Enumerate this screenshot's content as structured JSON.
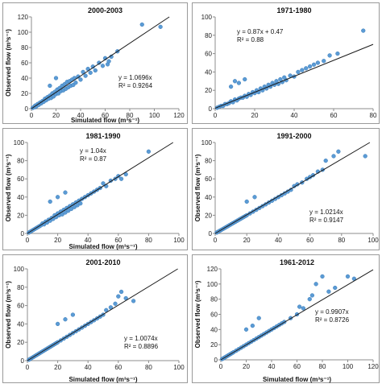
{
  "colors": {
    "point": "#5b9bd5",
    "point_edge": "#3f7fba",
    "fit_line": "#1a1a1a",
    "axis": "#8c8c8c"
  },
  "chart_data": [
    {
      "type": "scatter",
      "title": "2000-2003",
      "xlabel": "Simulated flow (m³s⁻¹)",
      "ylabel": "Observed flow (m³s⁻¹)",
      "xlim": [
        0,
        120
      ],
      "ylim": [
        0,
        120
      ],
      "xticks": [
        "0",
        "20",
        "40",
        "60",
        "80",
        "100",
        "120"
      ],
      "yticks": [
        "0",
        "20",
        "40",
        "60",
        "80",
        "100",
        "120"
      ],
      "equation": "y = 1.0696x",
      "r2": "R² = 0.9264",
      "fit": {
        "slope": 1.0696,
        "intercept": 0
      },
      "points": [
        [
          1,
          1
        ],
        [
          2,
          2
        ],
        [
          3,
          2
        ],
        [
          3,
          4
        ],
        [
          4,
          3
        ],
        [
          5,
          6
        ],
        [
          6,
          5
        ],
        [
          7,
          8
        ],
        [
          8,
          7
        ],
        [
          9,
          10
        ],
        [
          10,
          9
        ],
        [
          11,
          13
        ],
        [
          12,
          11
        ],
        [
          13,
          15
        ],
        [
          14,
          13
        ],
        [
          15,
          17
        ],
        [
          16,
          14
        ],
        [
          17,
          20
        ],
        [
          18,
          16
        ],
        [
          19,
          22
        ],
        [
          20,
          19
        ],
        [
          21,
          25
        ],
        [
          22,
          20
        ],
        [
          23,
          27
        ],
        [
          24,
          23
        ],
        [
          25,
          30
        ],
        [
          26,
          24
        ],
        [
          27,
          32
        ],
        [
          28,
          26
        ],
        [
          29,
          35
        ],
        [
          30,
          28
        ],
        [
          31,
          36
        ],
        [
          32,
          30
        ],
        [
          33,
          38
        ],
        [
          34,
          31
        ],
        [
          35,
          40
        ],
        [
          36,
          34
        ],
        [
          38,
          42
        ],
        [
          40,
          38
        ],
        [
          42,
          48
        ],
        [
          44,
          43
        ],
        [
          46,
          52
        ],
        [
          48,
          47
        ],
        [
          50,
          55
        ],
        [
          52,
          50
        ],
        [
          55,
          60
        ],
        [
          58,
          56
        ],
        [
          60,
          66
        ],
        [
          62,
          58
        ],
        [
          63,
          62
        ],
        [
          65,
          68
        ],
        [
          70,
          75
        ],
        [
          90,
          110
        ],
        [
          105,
          107
        ],
        [
          20,
          40
        ],
        [
          15,
          30
        ]
      ]
    },
    {
      "type": "scatter",
      "title": "1971-1980",
      "xlabel": "",
      "ylabel": "",
      "xlim": [
        0,
        80
      ],
      "ylim": [
        0,
        100
      ],
      "xticks": [
        "0",
        "20",
        "40",
        "60",
        "80"
      ],
      "yticks": [
        "0",
        "20",
        "40",
        "60",
        "80",
        "100"
      ],
      "equation": "y = 0.87x + 0.47",
      "r2": "R² = 0.88",
      "fit": {
        "slope": 0.87,
        "intercept": 0.47
      },
      "points": [
        [
          1,
          1
        ],
        [
          2,
          2
        ],
        [
          3,
          3
        ],
        [
          4,
          3
        ],
        [
          5,
          5
        ],
        [
          6,
          5
        ],
        [
          7,
          6
        ],
        [
          8,
          8
        ],
        [
          9,
          7
        ],
        [
          10,
          10
        ],
        [
          11,
          9
        ],
        [
          12,
          11
        ],
        [
          13,
          12
        ],
        [
          14,
          12
        ],
        [
          15,
          14
        ],
        [
          16,
          13
        ],
        [
          17,
          16
        ],
        [
          18,
          15
        ],
        [
          19,
          18
        ],
        [
          20,
          17
        ],
        [
          21,
          20
        ],
        [
          22,
          18
        ],
        [
          23,
          22
        ],
        [
          24,
          20
        ],
        [
          25,
          24
        ],
        [
          26,
          22
        ],
        [
          27,
          26
        ],
        [
          28,
          24
        ],
        [
          29,
          28
        ],
        [
          30,
          26
        ],
        [
          31,
          30
        ],
        [
          32,
          27
        ],
        [
          33,
          32
        ],
        [
          34,
          29
        ],
        [
          35,
          34
        ],
        [
          36,
          31
        ],
        [
          38,
          36
        ],
        [
          40,
          35
        ],
        [
          42,
          40
        ],
        [
          44,
          42
        ],
        [
          46,
          44
        ],
        [
          48,
          46
        ],
        [
          50,
          48
        ],
        [
          52,
          50
        ],
        [
          55,
          52
        ],
        [
          58,
          58
        ],
        [
          62,
          60
        ],
        [
          75,
          85
        ],
        [
          10,
          30
        ],
        [
          12,
          28
        ],
        [
          8,
          24
        ],
        [
          15,
          32
        ]
      ]
    },
    {
      "type": "scatter",
      "title": "1981-1990",
      "xlabel": "Simulated flow (m³s⁻¹)",
      "ylabel": "Observed flow (m³s⁻¹)",
      "xlim": [
        0,
        100
      ],
      "ylim": [
        0,
        100
      ],
      "xticks": [
        "0",
        "20",
        "40",
        "60",
        "80",
        "100"
      ],
      "yticks": [
        "0",
        "20",
        "40",
        "60",
        "80",
        "100"
      ],
      "equation": "y = 1.04x",
      "r2": "R² = 0.87",
      "fit": {
        "slope": 1.04,
        "intercept": 0
      },
      "points": [
        [
          1,
          1
        ],
        [
          2,
          2
        ],
        [
          3,
          3
        ],
        [
          4,
          4
        ],
        [
          5,
          5
        ],
        [
          6,
          6
        ],
        [
          7,
          7
        ],
        [
          8,
          8
        ],
        [
          9,
          9
        ],
        [
          10,
          11
        ],
        [
          11,
          10
        ],
        [
          12,
          13
        ],
        [
          13,
          12
        ],
        [
          14,
          15
        ],
        [
          15,
          14
        ],
        [
          16,
          17
        ],
        [
          17,
          16
        ],
        [
          18,
          20
        ],
        [
          19,
          18
        ],
        [
          20,
          22
        ],
        [
          21,
          20
        ],
        [
          22,
          24
        ],
        [
          23,
          21
        ],
        [
          24,
          26
        ],
        [
          25,
          23
        ],
        [
          26,
          28
        ],
        [
          27,
          25
        ],
        [
          28,
          30
        ],
        [
          29,
          27
        ],
        [
          30,
          32
        ],
        [
          31,
          29
        ],
        [
          32,
          34
        ],
        [
          33,
          31
        ],
        [
          34,
          36
        ],
        [
          35,
          33
        ],
        [
          36,
          38
        ],
        [
          38,
          40
        ],
        [
          40,
          42
        ],
        [
          42,
          44
        ],
        [
          44,
          46
        ],
        [
          46,
          48
        ],
        [
          48,
          50
        ],
        [
          50,
          55
        ],
        [
          52,
          52
        ],
        [
          55,
          58
        ],
        [
          58,
          60
        ],
        [
          60,
          63
        ],
        [
          62,
          60
        ],
        [
          65,
          65
        ],
        [
          80,
          90
        ],
        [
          15,
          35
        ],
        [
          20,
          40
        ],
        [
          25,
          45
        ]
      ]
    },
    {
      "type": "scatter",
      "title": "1991-2000",
      "xlabel": "",
      "ylabel": "Observed flow (m³s⁻¹)",
      "xlim": [
        0,
        100
      ],
      "ylim": [
        0,
        100
      ],
      "xticks": [
        "0",
        "20",
        "40",
        "60",
        "80",
        "100"
      ],
      "yticks": [
        "0",
        "20",
        "40",
        "60",
        "80",
        "100"
      ],
      "equation": "y = 1.0214x",
      "r2": "R² = 0.9147",
      "fit": {
        "slope": 1.0214,
        "intercept": 0
      },
      "points": [
        [
          1,
          1
        ],
        [
          2,
          2
        ],
        [
          3,
          3
        ],
        [
          4,
          4
        ],
        [
          5,
          5
        ],
        [
          6,
          6
        ],
        [
          7,
          7
        ],
        [
          8,
          8
        ],
        [
          9,
          9
        ],
        [
          10,
          10
        ],
        [
          11,
          11
        ],
        [
          12,
          12
        ],
        [
          13,
          13
        ],
        [
          14,
          14
        ],
        [
          15,
          15
        ],
        [
          16,
          16
        ],
        [
          17,
          17
        ],
        [
          18,
          18
        ],
        [
          19,
          19
        ],
        [
          20,
          20
        ],
        [
          22,
          22
        ],
        [
          24,
          24
        ],
        [
          26,
          26
        ],
        [
          28,
          28
        ],
        [
          30,
          30
        ],
        [
          32,
          32
        ],
        [
          34,
          34
        ],
        [
          36,
          36
        ],
        [
          38,
          38
        ],
        [
          40,
          40
        ],
        [
          42,
          42
        ],
        [
          44,
          44
        ],
        [
          46,
          46
        ],
        [
          48,
          48
        ],
        [
          50,
          52
        ],
        [
          52,
          54
        ],
        [
          55,
          56
        ],
        [
          58,
          60
        ],
        [
          60,
          62
        ],
        [
          62,
          64
        ],
        [
          65,
          68
        ],
        [
          68,
          70
        ],
        [
          70,
          80
        ],
        [
          75,
          85
        ],
        [
          78,
          90
        ],
        [
          95,
          85
        ],
        [
          20,
          35
        ],
        [
          25,
          40
        ]
      ]
    },
    {
      "type": "scatter",
      "title": "2001-2010",
      "xlabel": "Simulated flow (m³s⁻¹)",
      "ylabel": "Observed flow (m³s⁻¹)",
      "xlim": [
        0,
        100
      ],
      "ylim": [
        0,
        100
      ],
      "xticks": [
        "0",
        "20",
        "40",
        "60",
        "80",
        "100"
      ],
      "yticks": [
        "0",
        "20",
        "40",
        "60",
        "80",
        "100"
      ],
      "equation": "y = 1.0074x",
      "r2": "R² = 0.8896",
      "fit": {
        "slope": 1.0074,
        "intercept": 0
      },
      "points": [
        [
          1,
          1
        ],
        [
          2,
          2
        ],
        [
          3,
          3
        ],
        [
          4,
          4
        ],
        [
          5,
          5
        ],
        [
          6,
          6
        ],
        [
          7,
          7
        ],
        [
          8,
          8
        ],
        [
          9,
          9
        ],
        [
          10,
          10
        ],
        [
          11,
          11
        ],
        [
          12,
          12
        ],
        [
          13,
          13
        ],
        [
          14,
          14
        ],
        [
          15,
          15
        ],
        [
          16,
          16
        ],
        [
          17,
          17
        ],
        [
          18,
          18
        ],
        [
          19,
          19
        ],
        [
          20,
          20
        ],
        [
          22,
          22
        ],
        [
          24,
          24
        ],
        [
          26,
          26
        ],
        [
          28,
          28
        ],
        [
          30,
          30
        ],
        [
          32,
          32
        ],
        [
          34,
          34
        ],
        [
          36,
          36
        ],
        [
          38,
          38
        ],
        [
          40,
          40
        ],
        [
          42,
          42
        ],
        [
          44,
          44
        ],
        [
          46,
          46
        ],
        [
          48,
          48
        ],
        [
          50,
          50
        ],
        [
          52,
          55
        ],
        [
          55,
          58
        ],
        [
          58,
          62
        ],
        [
          60,
          70
        ],
        [
          62,
          75
        ],
        [
          65,
          68
        ],
        [
          70,
          65
        ],
        [
          20,
          40
        ],
        [
          25,
          45
        ],
        [
          30,
          50
        ]
      ]
    },
    {
      "type": "scatter",
      "title": "1961-2012",
      "xlabel": "Simulated flow (m³s⁻¹)",
      "ylabel": "Observed flow (m³s⁻¹)",
      "xlim": [
        0,
        120
      ],
      "ylim": [
        0,
        120
      ],
      "xticks": [
        "0",
        "20",
        "40",
        "60",
        "80",
        "100",
        "120"
      ],
      "yticks": [
        "0",
        "20",
        "40",
        "60",
        "80",
        "100",
        "120"
      ],
      "equation": "y = 0.9907x",
      "r2": "R² = 0.8726",
      "fit": {
        "slope": 0.9907,
        "intercept": 0
      },
      "points": [
        [
          1,
          1
        ],
        [
          2,
          2
        ],
        [
          3,
          3
        ],
        [
          4,
          4
        ],
        [
          5,
          5
        ],
        [
          6,
          6
        ],
        [
          7,
          7
        ],
        [
          8,
          8
        ],
        [
          9,
          9
        ],
        [
          10,
          10
        ],
        [
          12,
          12
        ],
        [
          14,
          14
        ],
        [
          16,
          16
        ],
        [
          18,
          18
        ],
        [
          20,
          20
        ],
        [
          22,
          22
        ],
        [
          24,
          24
        ],
        [
          26,
          26
        ],
        [
          28,
          28
        ],
        [
          30,
          30
        ],
        [
          32,
          32
        ],
        [
          34,
          34
        ],
        [
          36,
          36
        ],
        [
          38,
          38
        ],
        [
          40,
          40
        ],
        [
          42,
          42
        ],
        [
          44,
          44
        ],
        [
          46,
          46
        ],
        [
          48,
          48
        ],
        [
          50,
          50
        ],
        [
          55,
          55
        ],
        [
          60,
          60
        ],
        [
          62,
          70
        ],
        [
          65,
          68
        ],
        [
          70,
          80
        ],
        [
          72,
          85
        ],
        [
          75,
          100
        ],
        [
          80,
          110
        ],
        [
          85,
          90
        ],
        [
          90,
          95
        ],
        [
          100,
          110
        ],
        [
          105,
          107
        ],
        [
          20,
          40
        ],
        [
          25,
          45
        ],
        [
          30,
          55
        ]
      ]
    }
  ]
}
